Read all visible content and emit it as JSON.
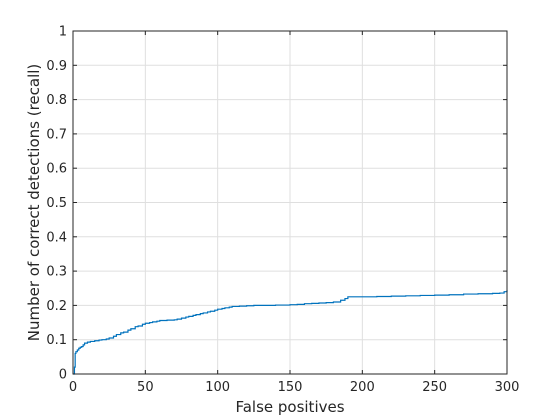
{
  "chart_data": {
    "type": "line",
    "title": "",
    "xlabel": "False positives",
    "ylabel": "Number of correct detections (recall)",
    "xlim": [
      0,
      300
    ],
    "ylim": [
      0,
      1
    ],
    "xticks": [
      "0",
      "50",
      "100",
      "150",
      "200",
      "250",
      "300"
    ],
    "yticks": [
      "0",
      "0.1",
      "0.2",
      "0.3",
      "0.4",
      "0.5",
      "0.6",
      "0.7",
      "0.8",
      "0.9",
      "1"
    ],
    "grid": true,
    "step": true,
    "series": [
      {
        "color": "#0072bd",
        "x": [
          0,
          1,
          1.5,
          2,
          3,
          4,
          5,
          6,
          7,
          8,
          10,
          12,
          15,
          18,
          20,
          23,
          25,
          28,
          30,
          33,
          35,
          38,
          40,
          43,
          45,
          48,
          50,
          53,
          55,
          58,
          60,
          65,
          70,
          72,
          75,
          78,
          80,
          83,
          85,
          88,
          90,
          93,
          95,
          98,
          100,
          103,
          105,
          108,
          110,
          115,
          120,
          125,
          130,
          140,
          150,
          155,
          160,
          165,
          170,
          175,
          180,
          185,
          188,
          190,
          195,
          200,
          210,
          220,
          230,
          240,
          250,
          260,
          270,
          280,
          290,
          295,
          298,
          300
        ],
        "y": [
          0,
          0.02,
          0.06,
          0.065,
          0.07,
          0.075,
          0.078,
          0.08,
          0.085,
          0.09,
          0.093,
          0.095,
          0.097,
          0.099,
          0.1,
          0.102,
          0.105,
          0.11,
          0.115,
          0.12,
          0.122,
          0.128,
          0.132,
          0.138,
          0.14,
          0.145,
          0.148,
          0.15,
          0.152,
          0.154,
          0.156,
          0.157,
          0.158,
          0.16,
          0.163,
          0.166,
          0.168,
          0.171,
          0.173,
          0.176,
          0.178,
          0.181,
          0.183,
          0.186,
          0.189,
          0.191,
          0.193,
          0.195,
          0.197,
          0.198,
          0.199,
          0.2,
          0.2,
          0.201,
          0.202,
          0.203,
          0.205,
          0.206,
          0.207,
          0.208,
          0.21,
          0.215,
          0.22,
          0.225,
          0.225,
          0.225,
          0.226,
          0.227,
          0.228,
          0.229,
          0.23,
          0.231,
          0.233,
          0.234,
          0.235,
          0.236,
          0.24,
          0.245
        ]
      }
    ]
  }
}
